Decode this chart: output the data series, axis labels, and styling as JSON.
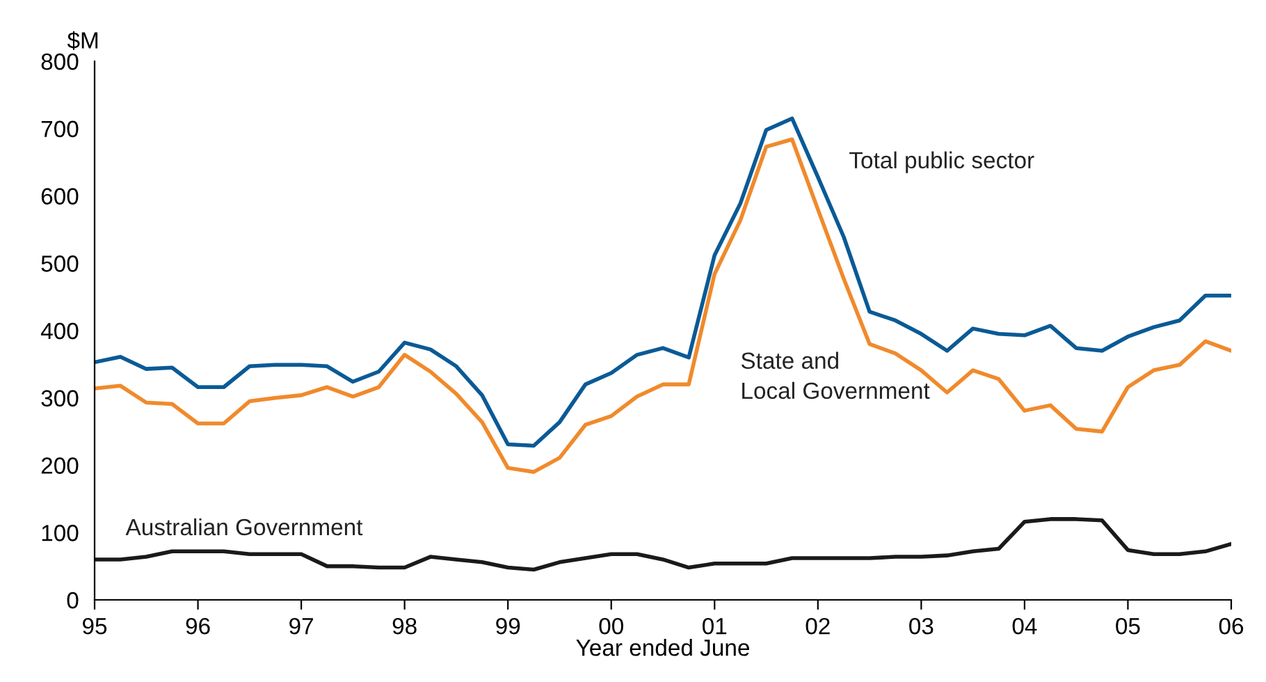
{
  "chart_data": {
    "type": "line",
    "ylabel": "$M",
    "xlabel": "Year ended June",
    "xlim": [
      1995,
      2006
    ],
    "xticks": [
      {
        "value": 1995,
        "label": "95"
      },
      {
        "value": 1996,
        "label": "96"
      },
      {
        "value": 1997,
        "label": "97"
      },
      {
        "value": 1998,
        "label": "98"
      },
      {
        "value": 1999,
        "label": "99"
      },
      {
        "value": 2000,
        "label": "00"
      },
      {
        "value": 2001,
        "label": "01"
      },
      {
        "value": 2002,
        "label": "02"
      },
      {
        "value": 2003,
        "label": "03"
      },
      {
        "value": 2004,
        "label": "04"
      },
      {
        "value": 2005,
        "label": "05"
      },
      {
        "value": 2006,
        "label": "06"
      }
    ],
    "ylim": [
      0,
      800
    ],
    "yticks": [
      0,
      100,
      200,
      300,
      400,
      500,
      600,
      700,
      800
    ],
    "grid": false,
    "legend": false,
    "marker": "none",
    "line_style": "solid",
    "x": [
      1995,
      1995.25,
      1995.5,
      1995.75,
      1996,
      1996.25,
      1996.5,
      1996.75,
      1997,
      1997.25,
      1997.5,
      1997.75,
      1998,
      1998.25,
      1998.5,
      1998.75,
      1999,
      1999.25,
      1999.5,
      1999.75,
      2000,
      2000.25,
      2000.5,
      2000.75,
      2001,
      2001.25,
      2001.5,
      2001.75,
      2002,
      2002.25,
      2002.5,
      2002.75,
      2003,
      2003.25,
      2003.5,
      2003.75,
      2004,
      2004.25,
      2004.5,
      2004.75,
      2005,
      2005.25,
      2005.5,
      2005.75,
      2006
    ],
    "series": [
      {
        "name": "Total public sector",
        "color": "#0a5a96",
        "values": [
          353,
          361,
          343,
          345,
          316,
          316,
          347,
          349,
          349,
          347,
          324,
          339,
          382,
          372,
          347,
          304,
          231,
          229,
          264,
          320,
          337,
          364,
          374,
          360,
          512,
          589,
          698,
          715,
          628,
          539,
          428,
          415,
          395,
          370,
          403,
          395,
          393,
          407,
          374,
          370,
          391,
          405,
          415,
          452,
          452
        ]
      },
      {
        "name": "State and\nLocal Government",
        "color": "#f08a2c",
        "values": [
          314,
          318,
          293,
          291,
          262,
          262,
          295,
          300,
          304,
          316,
          302,
          316,
          364,
          339,
          306,
          264,
          196,
          190,
          211,
          260,
          273,
          302,
          320,
          320,
          484,
          564,
          673,
          684,
          580,
          477,
          380,
          366,
          341,
          308,
          341,
          328,
          281,
          289,
          254,
          250,
          316,
          341,
          349,
          384,
          370
        ]
      },
      {
        "name": "Australian Government",
        "color": "#1a1a1a",
        "values": [
          60,
          60,
          64,
          72,
          72,
          72,
          68,
          68,
          68,
          50,
          50,
          48,
          48,
          64,
          60,
          56,
          48,
          45,
          56,
          62,
          68,
          68,
          60,
          48,
          54,
          54,
          54,
          62,
          62,
          62,
          62,
          64,
          64,
          66,
          72,
          76,
          116,
          120,
          120,
          118,
          74,
          68,
          68,
          72,
          83
        ]
      }
    ]
  }
}
